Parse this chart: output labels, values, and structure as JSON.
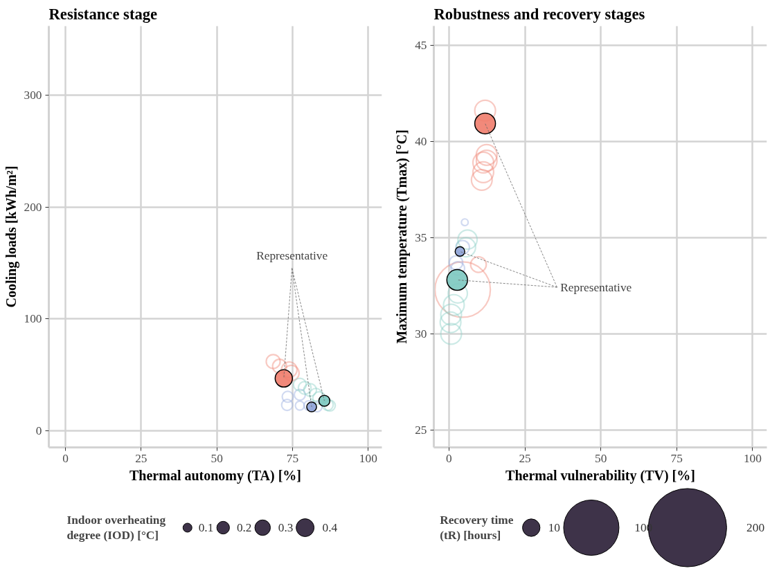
{
  "chart_data": [
    {
      "type": "bubble",
      "title": "Resistance stage",
      "xlabel": "Thermal autonomy (TA) [%]",
      "ylabel": "Cooling loads [kWh/m²]",
      "legend_title": "Indoor overheating degree (IOD) [°C]",
      "size_legend": [
        0.1,
        0.2,
        0.3,
        0.4
      ],
      "xlim": [
        -5.5,
        104.5
      ],
      "ylim": [
        -15,
        362
      ],
      "xticks": [
        0,
        25,
        50,
        75,
        100
      ],
      "yticks": [
        0,
        100,
        200,
        300
      ],
      "grid": true,
      "annotations": [
        {
          "text": "Representative",
          "x": 72.1,
          "y": 46.7
        }
      ],
      "series": [
        {
          "color": "#f08a7a",
          "x": [
            68.6,
            70.7,
            73.9,
            74.6
          ],
          "values": [
            61.8,
            57.6,
            54.5,
            51.5
          ],
          "sizes": [
            0.24,
            0.24,
            0.3,
            0.3
          ]
        },
        {
          "color": "#9aaee0",
          "x": [
            73.2,
            73.4,
            77.4,
            77.4,
            80.4,
            83.1
          ],
          "values": [
            23.0,
            30.3,
            22.4,
            32.1,
            22.4,
            21.2
          ],
          "sizes": [
            0.15,
            0.15,
            0.1,
            0.15,
            0.12,
            0.12
          ]
        },
        {
          "color": "#8dd0c8",
          "x": [
            77.4,
            79.0,
            80.8,
            82.7,
            83.8,
            86.6,
            87.3
          ],
          "values": [
            41.2,
            38.2,
            36.4,
            32.1,
            29.1,
            23.0,
            22.4
          ],
          "sizes": [
            0.2,
            0.2,
            0.2,
            0.2,
            0.2,
            0.15,
            0.15
          ]
        },
        {
          "color": "#000000",
          "colors": [
            "#f07c6c",
            "#8fa3d8",
            "#7cc8c0"
          ],
          "x": [
            72.1,
            81.3,
            85.5
          ],
          "values": [
            46.7,
            21.2,
            26.7
          ],
          "sizes": [
            0.37,
            0.12,
            0.15
          ]
        }
      ]
    },
    {
      "type": "bubble",
      "title": "Robustness and recovery stages",
      "xlabel": "Thermal vulnerability (TV) [%]",
      "ylabel": "Maximum temperature (Tmax) [°C]",
      "legend_title": "Recovery time (tR) [hours]",
      "size_legend": [
        10,
        100,
        200
      ],
      "xlim": [
        -5,
        104.7
      ],
      "ylim": [
        24.1,
        46
      ],
      "xticks": [
        0,
        25,
        50,
        75,
        100
      ],
      "yticks": [
        25,
        30,
        35,
        40,
        45
      ],
      "grid": true,
      "annotations": [
        {
          "text": "Representative",
          "x": 11.9,
          "y": 40.93
        }
      ],
      "series": [
        {
          "color": "#f08a7a",
          "x": [
            11.9,
            12.4,
            11.3,
            12.4,
            10.8,
            11.3,
            9.7,
            4.5
          ],
          "values": [
            41.6,
            39.3,
            38.9,
            39.0,
            38.0,
            38.4,
            33.6,
            32.3
          ],
          "sizes": [
            14,
            14,
            14,
            14,
            14,
            14,
            8,
            100
          ]
        },
        {
          "color": "#9aaee0",
          "x": [
            5.2,
            4.5,
            2.3,
            2.9
          ],
          "values": [
            35.8,
            34.5,
            33.7,
            33.4
          ],
          "sizes": [
            1.5,
            6,
            6,
            6
          ]
        },
        {
          "color": "#8dd0c8",
          "x": [
            6.1,
            5.6,
            2.9,
            1.6,
            0.7,
            0.5,
            0.7
          ],
          "values": [
            34.9,
            34.5,
            32.1,
            31.5,
            31.0,
            30.6,
            30.0
          ],
          "sizes": [
            12,
            12,
            12,
            14,
            14,
            14,
            14
          ]
        },
        {
          "color": "#000000",
          "colors": [
            "#f07c6c",
            "#8fa3d8",
            "#7cc8c0"
          ],
          "x": [
            11.9,
            3.6,
            2.7
          ],
          "values": [
            40.93,
            34.28,
            32.8
          ],
          "sizes": [
            14,
            3,
            14
          ]
        }
      ]
    }
  ]
}
